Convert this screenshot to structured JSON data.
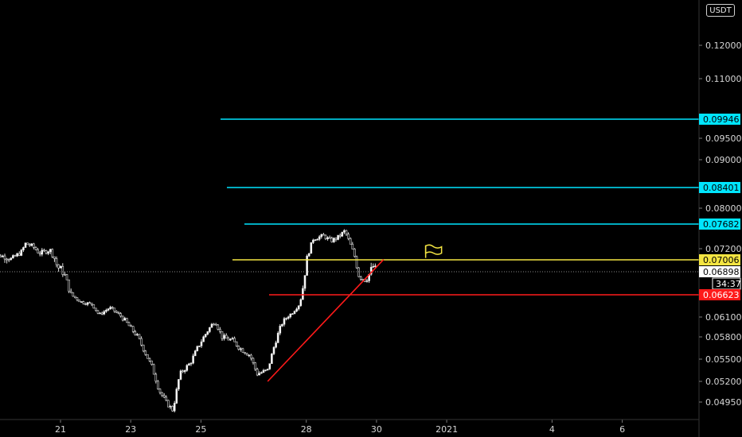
{
  "toolbar": {
    "currency_label": "USDT"
  },
  "chart_data": {
    "type": "candlestick",
    "title": "",
    "xlabel": "",
    "ylabel": "",
    "x_ticks": [
      {
        "label": "21",
        "day": 21
      },
      {
        "label": "23",
        "day": 23
      },
      {
        "label": "25",
        "day": 25
      },
      {
        "label": "28",
        "day": 28
      },
      {
        "label": "30",
        "day": 30
      },
      {
        "label": "2021",
        "day": 32
      },
      {
        "label": "4",
        "day": 35
      },
      {
        "label": "6",
        "day": 37
      }
    ],
    "y_ticks": [
      "0.12000",
      "0.11000",
      "0.09500",
      "0.09000",
      "0.08000",
      "0.07200",
      "0.06100",
      "0.05800",
      "0.05500",
      "0.05200",
      "0.04950"
    ],
    "levels": [
      {
        "name": "resistance-3",
        "value": 0.09946,
        "label": "0.09946",
        "color": "#00e5ff"
      },
      {
        "name": "resistance-2",
        "value": 0.08401,
        "label": "0.08401",
        "color": "#00e5ff"
      },
      {
        "name": "resistance-1",
        "value": 0.07682,
        "label": "0.07682",
        "color": "#00e5ff"
      },
      {
        "name": "pivot",
        "value": 0.07006,
        "label": "0.07006",
        "color": "#f4e542"
      },
      {
        "name": "last-price",
        "value": 0.06898,
        "label": "0.06898",
        "color": "#ffffff"
      },
      {
        "name": "support",
        "value": 0.06623,
        "label": "0.06623",
        "color": "#ff1a1a"
      }
    ],
    "countdown": "34:37",
    "price_path": [
      [
        19.0,
        0.07
      ],
      [
        19.3,
        0.0708
      ],
      [
        19.6,
        0.0702
      ],
      [
        19.9,
        0.0715
      ],
      [
        20.0,
        0.073
      ],
      [
        20.2,
        0.0725
      ],
      [
        20.4,
        0.0712
      ],
      [
        20.7,
        0.0718
      ],
      [
        20.9,
        0.0695
      ],
      [
        21.1,
        0.0688
      ],
      [
        21.3,
        0.0662
      ],
      [
        21.6,
        0.0645
      ],
      [
        21.9,
        0.064
      ],
      [
        22.1,
        0.0615
      ],
      [
        22.4,
        0.0632
      ],
      [
        22.6,
        0.062
      ],
      [
        22.9,
        0.06
      ],
      [
        23.2,
        0.058
      ],
      [
        23.4,
        0.056
      ],
      [
        23.6,
        0.054
      ],
      [
        23.8,
        0.051
      ],
      [
        24.0,
        0.0495
      ],
      [
        24.2,
        0.0485
      ],
      [
        24.4,
        0.053
      ],
      [
        24.7,
        0.0545
      ],
      [
        24.9,
        0.0565
      ],
      [
        25.2,
        0.059
      ],
      [
        25.4,
        0.0605
      ],
      [
        25.6,
        0.058
      ],
      [
        25.9,
        0.0575
      ],
      [
        26.1,
        0.0565
      ],
      [
        26.4,
        0.0555
      ],
      [
        26.6,
        0.053
      ],
      [
        26.9,
        0.0535
      ],
      [
        27.1,
        0.057
      ],
      [
        27.3,
        0.06
      ],
      [
        27.6,
        0.062
      ],
      [
        27.8,
        0.064
      ],
      [
        28.0,
        0.07
      ],
      [
        28.2,
        0.074
      ],
      [
        28.5,
        0.0745
      ],
      [
        28.7,
        0.0735
      ],
      [
        28.9,
        0.0742
      ],
      [
        29.1,
        0.0755
      ],
      [
        29.3,
        0.072
      ],
      [
        29.5,
        0.0685
      ],
      [
        29.7,
        0.068
      ],
      [
        29.9,
        0.0695
      ],
      [
        30.0,
        0.069
      ]
    ],
    "trendline": {
      "from": [
        26.9,
        0.052
      ],
      "to": [
        30.2,
        0.0701
      ],
      "color": "#ff1a1a"
    },
    "flag_marker": {
      "day": 31.4,
      "value": 0.0715,
      "color": "#f4e542"
    }
  }
}
